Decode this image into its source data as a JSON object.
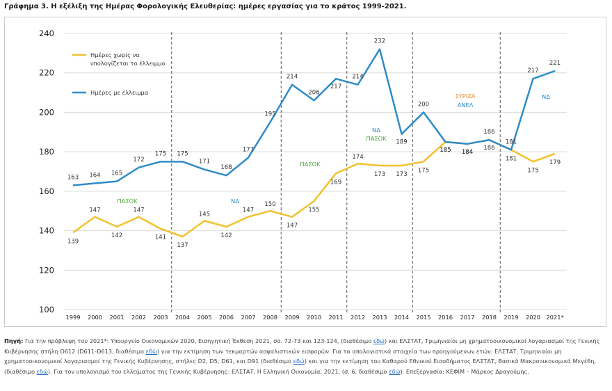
{
  "title": "Γράφημα 3. Η εξέλιξη της Ημέρας Φορολογικής Ελευθερίας: ημέρες εργασίας για το κράτος 1999-2021.",
  "chart_data": {
    "type": "line",
    "categories": [
      "1999",
      "2000",
      "2001",
      "2002",
      "2003",
      "2004",
      "2005",
      "2006",
      "2007",
      "2008",
      "2009",
      "2010",
      "2011",
      "2012",
      "2013",
      "2014",
      "2015",
      "2016",
      "2017",
      "2018",
      "2019",
      "2020",
      "2021*"
    ],
    "ylim": [
      100,
      240
    ],
    "yticks": [
      "100",
      "120",
      "140",
      "160",
      "180",
      "200",
      "220",
      "240"
    ],
    "dividers_after": [
      "2003",
      "2008",
      "2011",
      "2014",
      "2018"
    ],
    "series": [
      {
        "name": "Ημέρες με έλλειμμα",
        "color": "#2e8bc9",
        "values": [
          163,
          164,
          165,
          172,
          175,
          175,
          171,
          168,
          177,
          195,
          214,
          206,
          217,
          214,
          232,
          189,
          200,
          185,
          184,
          186,
          181,
          217,
          221
        ],
        "labels": [
          "163",
          "164",
          "165",
          "172",
          "175",
          "175",
          "171",
          "168",
          "177",
          "195",
          "214",
          "206",
          "217",
          "214",
          "232",
          "189",
          "200",
          "185",
          "184",
          "186",
          "181",
          "217",
          "221"
        ]
      },
      {
        "name": "Ημέρες χωρίς να υπολογίζεται το έλλειμμο",
        "color": "#f2c12e",
        "values": [
          139,
          147,
          142,
          147,
          141,
          137,
          145,
          142,
          147,
          150,
          147,
          155,
          169,
          174,
          173,
          173,
          175,
          185,
          184,
          186,
          181,
          175,
          179
        ],
        "labels": [
          "139",
          "147",
          "142",
          "147",
          "141",
          "137",
          "145",
          "142",
          "147",
          "150",
          "147",
          "155",
          "169",
          "174",
          "173",
          "173",
          "175",
          "185",
          "184",
          "186",
          "181",
          "175",
          "179"
        ]
      }
    ],
    "legend": {
      "line1": "Ημέρες χωρίς να",
      "line2": "υπολογίζεται το έλλειμμο",
      "line3": "Ημέρες με έλλειμμα"
    },
    "periods": [
      {
        "text": "ΠΑΣΟΚ",
        "color": "#4daa3a"
      },
      {
        "text": "ΝΔ",
        "color": "#2e8bc9"
      },
      {
        "text": "ΠΑΣΟΚ",
        "color": "#4daa3a"
      },
      {
        "text": "ΝΔ",
        "color": "#2e8bc9"
      },
      {
        "text": "ΠΑΣΟΚ",
        "color": "#4daa3a"
      },
      {
        "text": "ΣΥΡΙΖΑ",
        "color": "#f08a30"
      },
      {
        "text": "ΑΝΕΛ",
        "color": "#2e8bc9"
      },
      {
        "text": "ΝΔ",
        "color": "#2e8bc9"
      }
    ]
  },
  "source": {
    "label": "Πηγή:",
    "s1": " Για την πρόβλεψη του 2021*: Υπουργείο Οικονομικών 2020, Εισηγητική Έκθεση 2021, σσ. 72-73 και 123-124, (διαθέσιμο ",
    "l1": "εδώ",
    "s2": ") και ΕΛΣΤΑΤ, Τριμηνιαίοι μη χρηματοοικονομικοί λογαριασμοί της Γενικής Κυβέρνησης στήλη D612 (D611-D613, διαθέσιμο ",
    "l2": "εδώ",
    "s3": ") για την εκτίμηση των τεκμαρτών ασφαλιστικών εισφορών. Για τα απολογιστικά στοιχεία των προηγούμενων ετών: ΕΛΣΤΑΤ, Τριμηνιαίοι μη χρηματοοικονομικοί λογαριασμοί της Γενικής Κυβέρνησης, στήλες D2, D5, D61, και D91 (διαθέσιμο ",
    "l3": "εδώ",
    "s4": ") και για την εκτίμηση του Καθαρού Εθνικού Εισοδήματος ΕΛΣΤΑΤ, Βασικά Μακροοικονομικά Μεγέθη, (διαθέσιμο ",
    "l4": "εδώ",
    "s5": "). Για τον υπολογισμό του ελλείματος της Γενικής Κυβέρνησης: ΕΛΣΤΑΤ, Η Ελληνική Οικονομία, 2021, (σ. 6, διαθέσιμο ",
    "l5": "εδώ",
    "s6": "). Επεξεργασία: ΚΕΦΙΜ – Μάρκος Δραγούμης."
  }
}
